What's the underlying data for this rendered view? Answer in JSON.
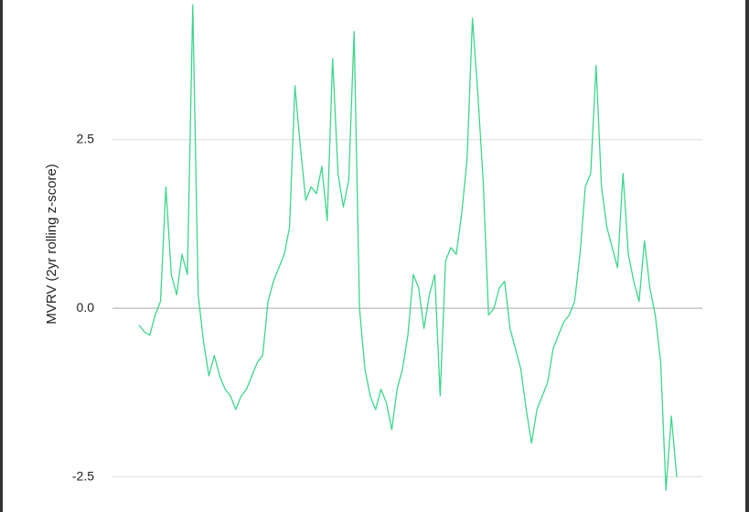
{
  "chart_data": {
    "type": "line",
    "y_label": "MVRV (2yr rolling z-score)",
    "ylim": [
      -3.02,
      4.57
    ],
    "yticks": [
      2.5,
      {
        "value": 0,
        "label": "0.0"
      },
      -2.5
    ],
    "grid": true,
    "series": [
      {
        "color": "#3dd68c",
        "values": [
          -0.25,
          -0.35,
          -0.4,
          -0.1,
          0.1,
          1.8,
          0.5,
          0.2,
          0.8,
          0.5,
          4.5,
          0.2,
          -0.5,
          -1.0,
          -0.7,
          -1.0,
          -1.2,
          -1.3,
          -1.5,
          -1.3,
          -1.2,
          -1.0,
          -0.8,
          -0.7,
          0.1,
          0.4,
          0.6,
          0.8,
          1.2,
          3.3,
          2.4,
          1.6,
          1.8,
          1.7,
          2.1,
          1.3,
          3.7,
          2.0,
          1.5,
          1.9,
          4.1,
          0.0,
          -0.9,
          -1.3,
          -1.5,
          -1.2,
          -1.4,
          -1.8,
          -1.2,
          -0.9,
          -0.4,
          0.5,
          0.3,
          -0.3,
          0.2,
          0.5,
          -1.3,
          0.7,
          0.9,
          0.8,
          1.4,
          2.2,
          4.3,
          3.2,
          1.9,
          -0.1,
          0.0,
          0.3,
          0.4,
          -0.3,
          -0.6,
          -0.9,
          -1.5,
          -2.0,
          -1.5,
          -1.3,
          -1.1,
          -0.6,
          -0.4,
          -0.2,
          -0.1,
          0.1,
          0.8,
          1.8,
          2.0,
          3.6,
          1.8,
          1.2,
          0.9,
          0.6,
          2.0,
          0.8,
          0.4,
          0.1,
          1.0,
          0.3,
          -0.1,
          -0.8,
          -2.7,
          -1.6,
          -2.5
        ]
      }
    ]
  }
}
